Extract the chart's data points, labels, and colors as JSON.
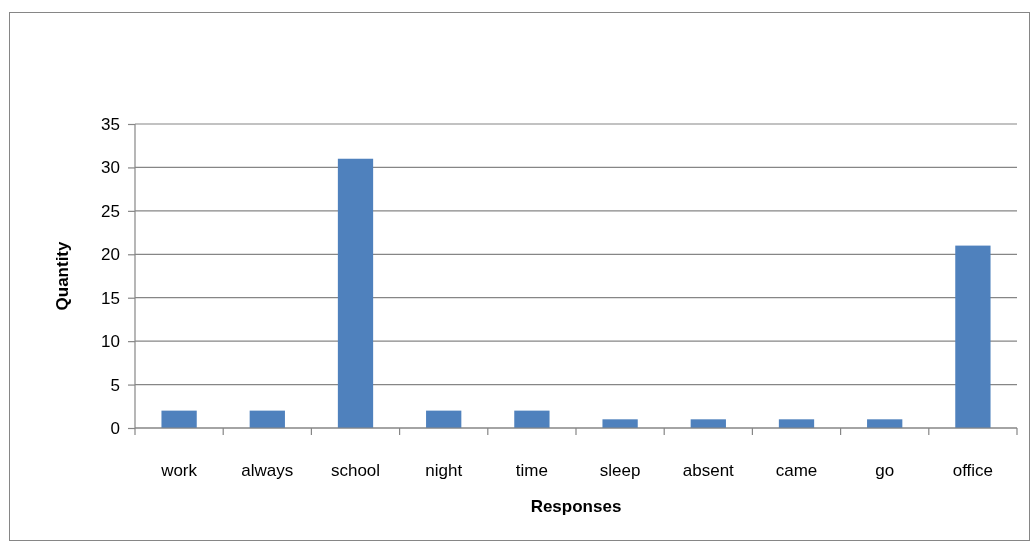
{
  "chart_data": {
    "type": "bar",
    "xlabel": "Responses",
    "ylabel": "Quantity",
    "categories": [
      "work",
      "always",
      "school",
      "night",
      "time",
      "sleep",
      "absent",
      "came",
      "go",
      "office"
    ],
    "values": [
      2,
      2,
      31,
      2,
      2,
      1,
      1,
      1,
      1,
      21
    ],
    "color": "#4f81bd",
    "ylim": [
      0,
      35
    ],
    "yticks": [
      0,
      5,
      10,
      15,
      20,
      25,
      30,
      35
    ],
    "grid": "y"
  }
}
